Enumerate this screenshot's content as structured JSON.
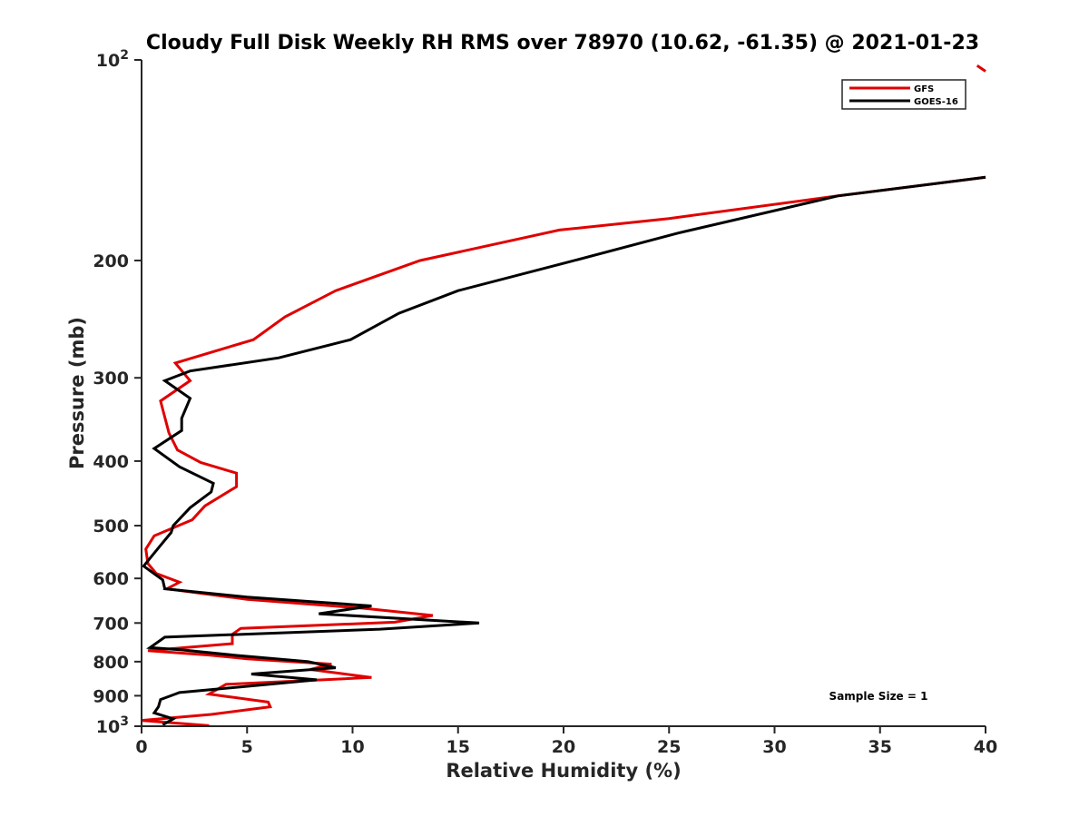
{
  "chart_data": {
    "type": "line",
    "title": "Cloudy Full Disk Weekly RH RMS over 78970 (10.62, -61.35) @ 2021-01-23",
    "xlabel": "Relative Humidity (%)",
    "ylabel": "Pressure (mb)",
    "xlim": [
      0,
      40
    ],
    "ylim": [
      100,
      1000
    ],
    "yscale": "log",
    "y_reversed": true,
    "grid": false,
    "legend_position": "top-right",
    "x_ticks": [
      "0",
      "5",
      "10",
      "15",
      "20",
      "25",
      "30",
      "35",
      "40"
    ],
    "y_ticks": [
      {
        "value": 100,
        "base": "10",
        "exp": "2"
      },
      {
        "value": 200,
        "label": "200"
      },
      {
        "value": 300,
        "label": "300"
      },
      {
        "value": 400,
        "label": "400"
      },
      {
        "value": 500,
        "label": "500"
      },
      {
        "value": 600,
        "label": "600"
      },
      {
        "value": 700,
        "label": "700"
      },
      {
        "value": 800,
        "label": "800"
      },
      {
        "value": 900,
        "label": "900"
      },
      {
        "value": 1000,
        "base": "10",
        "exp": "3"
      }
    ],
    "annotation": "Sample Size = 1",
    "series": [
      {
        "name": "GFS",
        "color": "#e00000",
        "points": [
          [
            40.0,
            150
          ],
          [
            33.0,
            160
          ],
          [
            25.0,
            173
          ],
          [
            19.8,
            180
          ],
          [
            13.2,
            200
          ],
          [
            9.2,
            222
          ],
          [
            6.8,
            243
          ],
          [
            5.3,
            263
          ],
          [
            1.6,
            285
          ],
          [
            2.3,
            303
          ],
          [
            0.9,
            325
          ],
          [
            1.3,
            363
          ],
          [
            1.7,
            385
          ],
          [
            2.8,
            402
          ],
          [
            4.5,
            417
          ],
          [
            4.5,
            437
          ],
          [
            3.0,
            467
          ],
          [
            2.4,
            490
          ],
          [
            0.6,
            518
          ],
          [
            0.2,
            542
          ],
          [
            0.3,
            570
          ],
          [
            0.7,
            590
          ],
          [
            1.8,
            608
          ],
          [
            1.2,
            622
          ],
          [
            5.0,
            645
          ],
          [
            10.5,
            665
          ],
          [
            13.8,
            682
          ],
          [
            12.0,
            698
          ],
          [
            4.7,
            713
          ],
          [
            4.3,
            728
          ],
          [
            4.3,
            752
          ],
          [
            0.3,
            770
          ],
          [
            3.2,
            782
          ],
          [
            5.0,
            792
          ],
          [
            9.0,
            807
          ],
          [
            8.0,
            822
          ],
          [
            10.9,
            845
          ],
          [
            4.0,
            865
          ],
          [
            3.2,
            895
          ],
          [
            6.0,
            920
          ],
          [
            6.1,
            935
          ],
          [
            3.3,
            960
          ],
          [
            0.0,
            980
          ],
          [
            3.2,
            998
          ]
        ]
      },
      {
        "name": "GOES-16",
        "color": "#000000",
        "points": [
          [
            40.0,
            150
          ],
          [
            33.0,
            160
          ],
          [
            25.4,
            182
          ],
          [
            20.0,
            202
          ],
          [
            15.0,
            222
          ],
          [
            12.2,
            240
          ],
          [
            9.9,
            263
          ],
          [
            6.5,
            280
          ],
          [
            2.3,
            293
          ],
          [
            1.1,
            303
          ],
          [
            2.3,
            322
          ],
          [
            1.9,
            345
          ],
          [
            1.9,
            360
          ],
          [
            0.6,
            383
          ],
          [
            1.8,
            408
          ],
          [
            3.4,
            432
          ],
          [
            3.3,
            445
          ],
          [
            2.3,
            470
          ],
          [
            1.5,
            500
          ],
          [
            1.4,
            512
          ],
          [
            0.8,
            540
          ],
          [
            0.1,
            575
          ],
          [
            1.0,
            603
          ],
          [
            1.1,
            622
          ],
          [
            5.0,
            640
          ],
          [
            10.9,
            660
          ],
          [
            8.4,
            678
          ],
          [
            16.0,
            700
          ],
          [
            11.3,
            715
          ],
          [
            1.1,
            735
          ],
          [
            0.4,
            762
          ],
          [
            1.9,
            768
          ],
          [
            4.5,
            783
          ],
          [
            7.9,
            800
          ],
          [
            9.2,
            817
          ],
          [
            5.2,
            835
          ],
          [
            8.3,
            852
          ],
          [
            1.8,
            890
          ],
          [
            0.9,
            912
          ],
          [
            0.8,
            935
          ],
          [
            0.6,
            955
          ],
          [
            1.5,
            975
          ],
          [
            1.0,
            995
          ]
        ]
      }
    ],
    "stray_marker": {
      "color": "#e00000",
      "points": [
        [
          39.6,
          102
        ],
        [
          40.0,
          104
        ]
      ]
    }
  }
}
